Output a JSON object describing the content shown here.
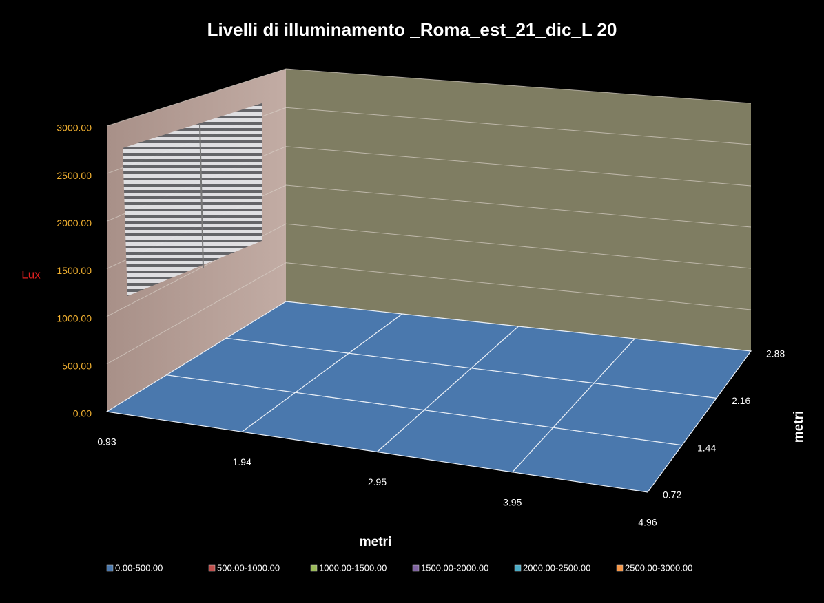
{
  "chart_data": {
    "type": "surface",
    "title": "Livelli di illuminamento _Roma_est_21_dic_L 20",
    "zlabel": "Lux",
    "xlabel": "metri",
    "ylabel": "metri",
    "categories": [
      "0.93",
      "1.94",
      "2.95",
      "3.95",
      "4.96"
    ],
    "depth": [
      "0.72",
      "1.44",
      "2.16",
      "2.88"
    ],
    "values": [
      [
        0,
        0,
        0,
        0,
        0
      ],
      [
        0,
        0,
        0,
        0,
        0
      ],
      [
        0,
        0,
        0,
        0,
        0
      ],
      [
        0,
        0,
        0,
        0,
        0
      ]
    ],
    "zlim": [
      0,
      3000
    ],
    "zticks": [
      {
        "value": 0,
        "label": "0.00"
      },
      {
        "value": 500,
        "label": "500.00"
      },
      {
        "value": 1000,
        "label": "1000.00"
      },
      {
        "value": 1500,
        "label": "1500.00"
      },
      {
        "value": 2000,
        "label": "2000.00"
      },
      {
        "value": 2500,
        "label": "2500.00"
      },
      {
        "value": 3000,
        "label": "3000.00"
      }
    ],
    "series": [
      {
        "name": "0.00-500.00",
        "color": "#4a78ad"
      },
      {
        "name": "500.00-1000.00",
        "color": "#c0504d"
      },
      {
        "name": "1000.00-1500.00",
        "color": "#9bbb59"
      },
      {
        "name": "1500.00-2000.00",
        "color": "#8064a2"
      },
      {
        "name": "2000.00-2500.00",
        "color": "#4bacc6"
      },
      {
        "name": "2500.00-3000.00",
        "color": "#f79646"
      }
    ],
    "grid": true
  }
}
